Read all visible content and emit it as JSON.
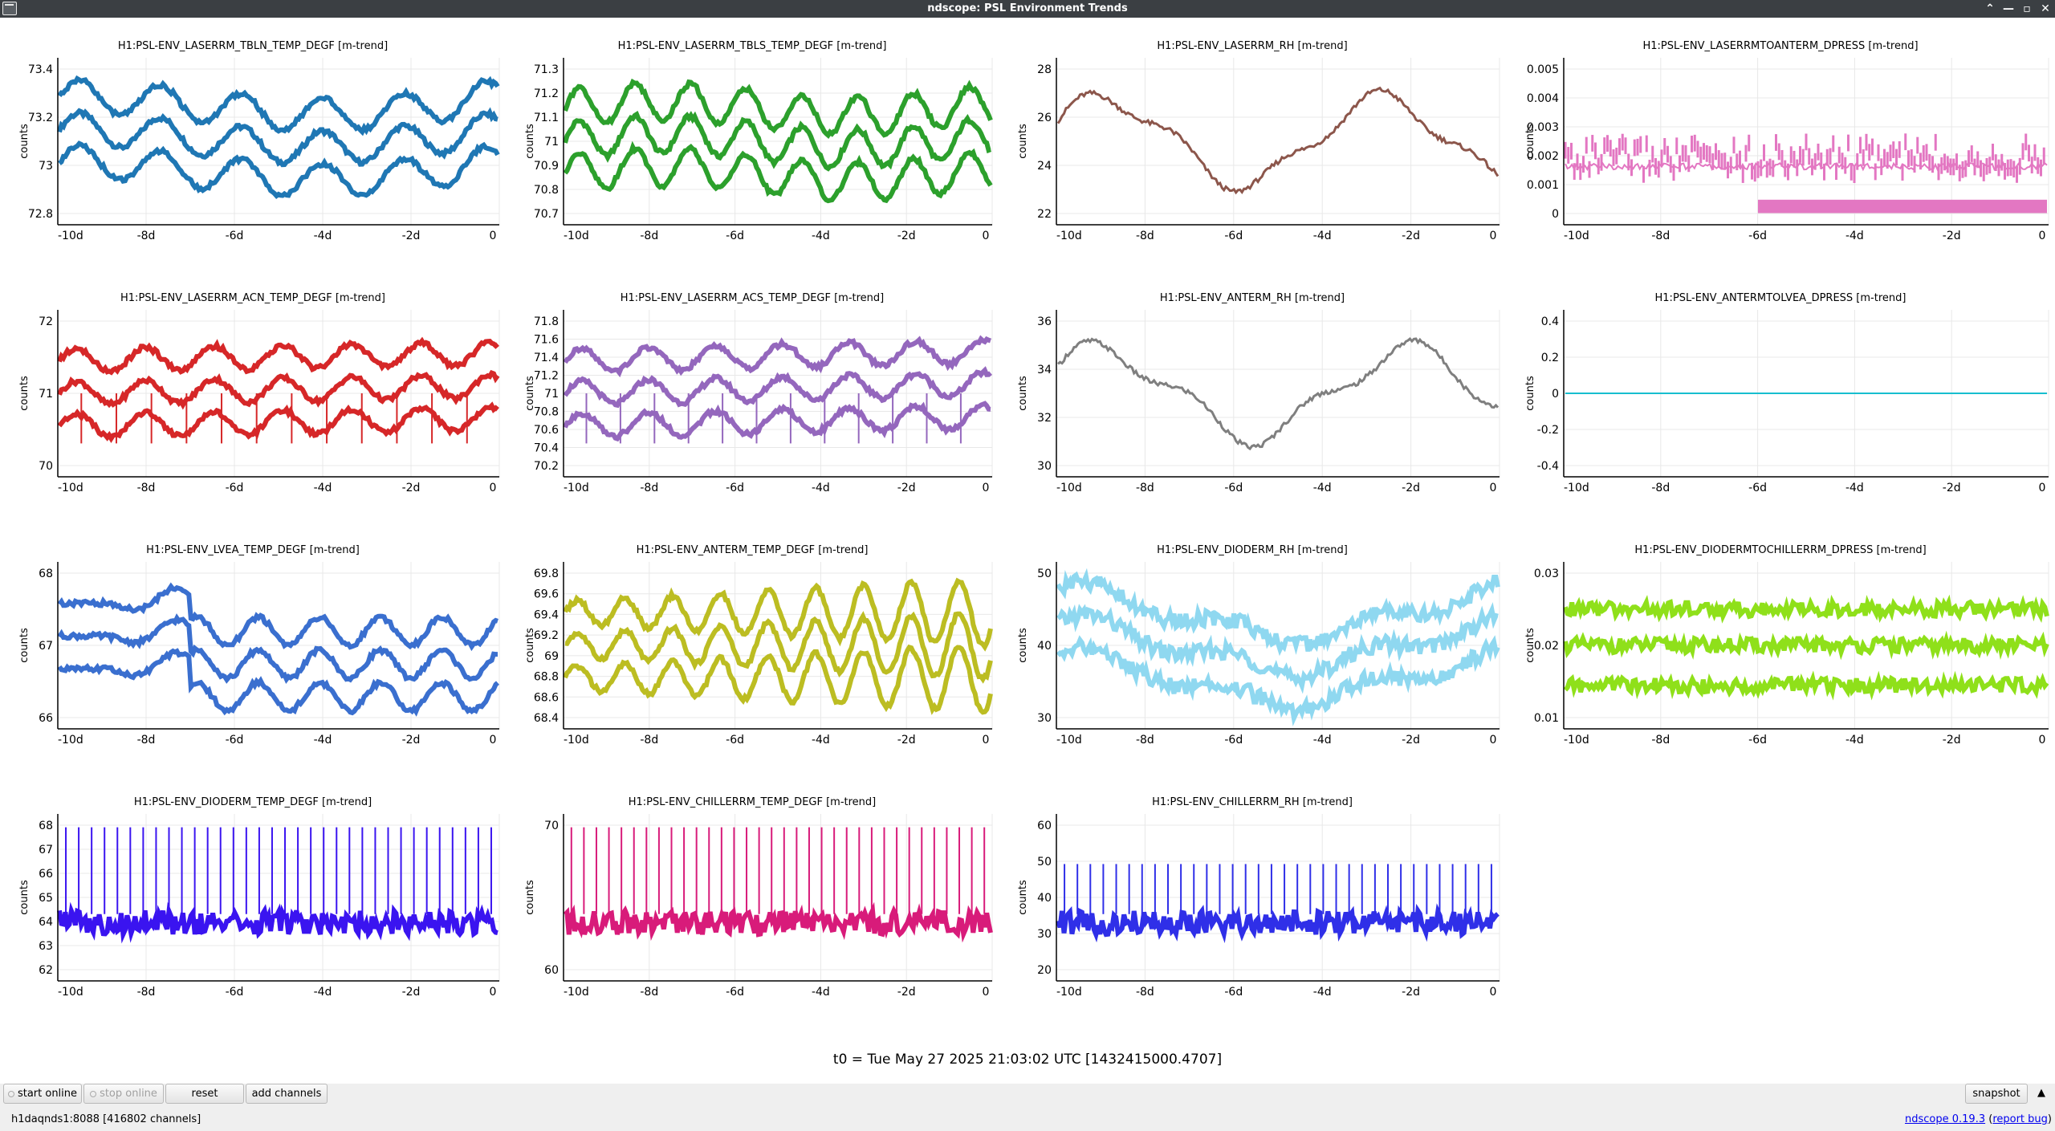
{
  "window": {
    "title": "ndscope: PSL Environment Trends"
  },
  "titlebar_buttons": [
    "⌃",
    "—",
    "▫",
    "✕"
  ],
  "y_axis_label": "counts",
  "x_ticks": [
    "-10d",
    "-8d",
    "-6d",
    "-4d",
    "-2d",
    "0"
  ],
  "plots": [
    {
      "title": "H1:PSL-ENV_LASERRM_TBLN_TEMP_DEGF [m-trend]",
      "color": "#1f77b4",
      "yticks": [
        "72.8",
        "73",
        "73.2",
        "73.4"
      ]
    },
    {
      "title": "H1:PSL-ENV_LASERRM_TBLS_TEMP_DEGF [m-trend]",
      "color": "#2ca02c",
      "yticks": [
        "70.7",
        "70.8",
        "70.9",
        "71",
        "71.1",
        "71.2",
        "71.3"
      ]
    },
    {
      "title": "H1:PSL-ENV_LASERRM_RH [m-trend]",
      "color": "#8c564b",
      "yticks": [
        "22",
        "24",
        "26",
        "28"
      ]
    },
    {
      "title": "H1:PSL-ENV_LASERRMTOANTERM_DPRESS [m-trend]",
      "color": "#e377c2",
      "yticks": [
        "0",
        "0.001",
        "0.002",
        "0.003",
        "0.004",
        "0.005"
      ]
    },
    {
      "title": "H1:PSL-ENV_LASERRM_ACN_TEMP_DEGF [m-trend]",
      "color": "#d62728",
      "yticks": [
        "70",
        "71",
        "72"
      ]
    },
    {
      "title": "H1:PSL-ENV_LASERRM_ACS_TEMP_DEGF [m-trend]",
      "color": "#9467bd",
      "yticks": [
        "70.2",
        "70.4",
        "70.6",
        "70.8",
        "71",
        "71.2",
        "71.4",
        "71.6",
        "71.8"
      ]
    },
    {
      "title": "H1:PSL-ENV_ANTERM_RH [m-trend]",
      "color": "#7f7f7f",
      "yticks": [
        "30",
        "32",
        "34",
        "36"
      ]
    },
    {
      "title": "H1:PSL-ENV_ANTERMTOLVEA_DPRESS [m-trend]",
      "color": "#17becf",
      "yticks": [
        "-0.4",
        "-0.2",
        "0",
        "0.2",
        "0.4"
      ]
    },
    {
      "title": "H1:PSL-ENV_LVEA_TEMP_DEGF [m-trend]",
      "color": "#3a6fcf",
      "yticks": [
        "66",
        "67",
        "68"
      ]
    },
    {
      "title": "H1:PSL-ENV_ANTERM_TEMP_DEGF [m-trend]",
      "color": "#bcbd22",
      "yticks": [
        "68.4",
        "68.6",
        "68.8",
        "69",
        "69.2",
        "69.4",
        "69.6",
        "69.8"
      ]
    },
    {
      "title": "H1:PSL-ENV_DIODERM_RH [m-trend]",
      "color": "#8fd8f0",
      "yticks": [
        "30",
        "40",
        "50"
      ]
    },
    {
      "title": "H1:PSL-ENV_DIODERMTOCHILLERRM_DPRESS [m-trend]",
      "color": "#8fe01a",
      "yticks": [
        "0.01",
        "0.02",
        "0.03"
      ]
    },
    {
      "title": "H1:PSL-ENV_DIODERM_TEMP_DEGF [m-trend]",
      "color": "#3a14f0",
      "yticks": [
        "62",
        "63",
        "64",
        "65",
        "66",
        "67",
        "68"
      ]
    },
    {
      "title": "H1:PSL-ENV_CHILLERRM_TEMP_DEGF [m-trend]",
      "color": "#d81b7a",
      "yticks": [
        "60",
        "70"
      ]
    },
    {
      "title": "H1:PSL-ENV_CHILLERRM_RH [m-trend]",
      "color": "#2f2fe8",
      "yticks": [
        "20",
        "30",
        "40",
        "50",
        "60"
      ]
    }
  ],
  "t0_label": "t0 = Tue May 27 2025 21:03:02 UTC [1432415000.4707]",
  "controls": {
    "start_online": "start online",
    "stop_online": "stop online",
    "reset": "reset",
    "add_channels": "add channels",
    "snapshot": "snapshot",
    "toggle_arrow": "▲"
  },
  "status": {
    "server": "h1daqnds1:8088  [416802 channels]",
    "version_link": "ndscope 0.19.3",
    "report_bug": "report bug"
  }
}
